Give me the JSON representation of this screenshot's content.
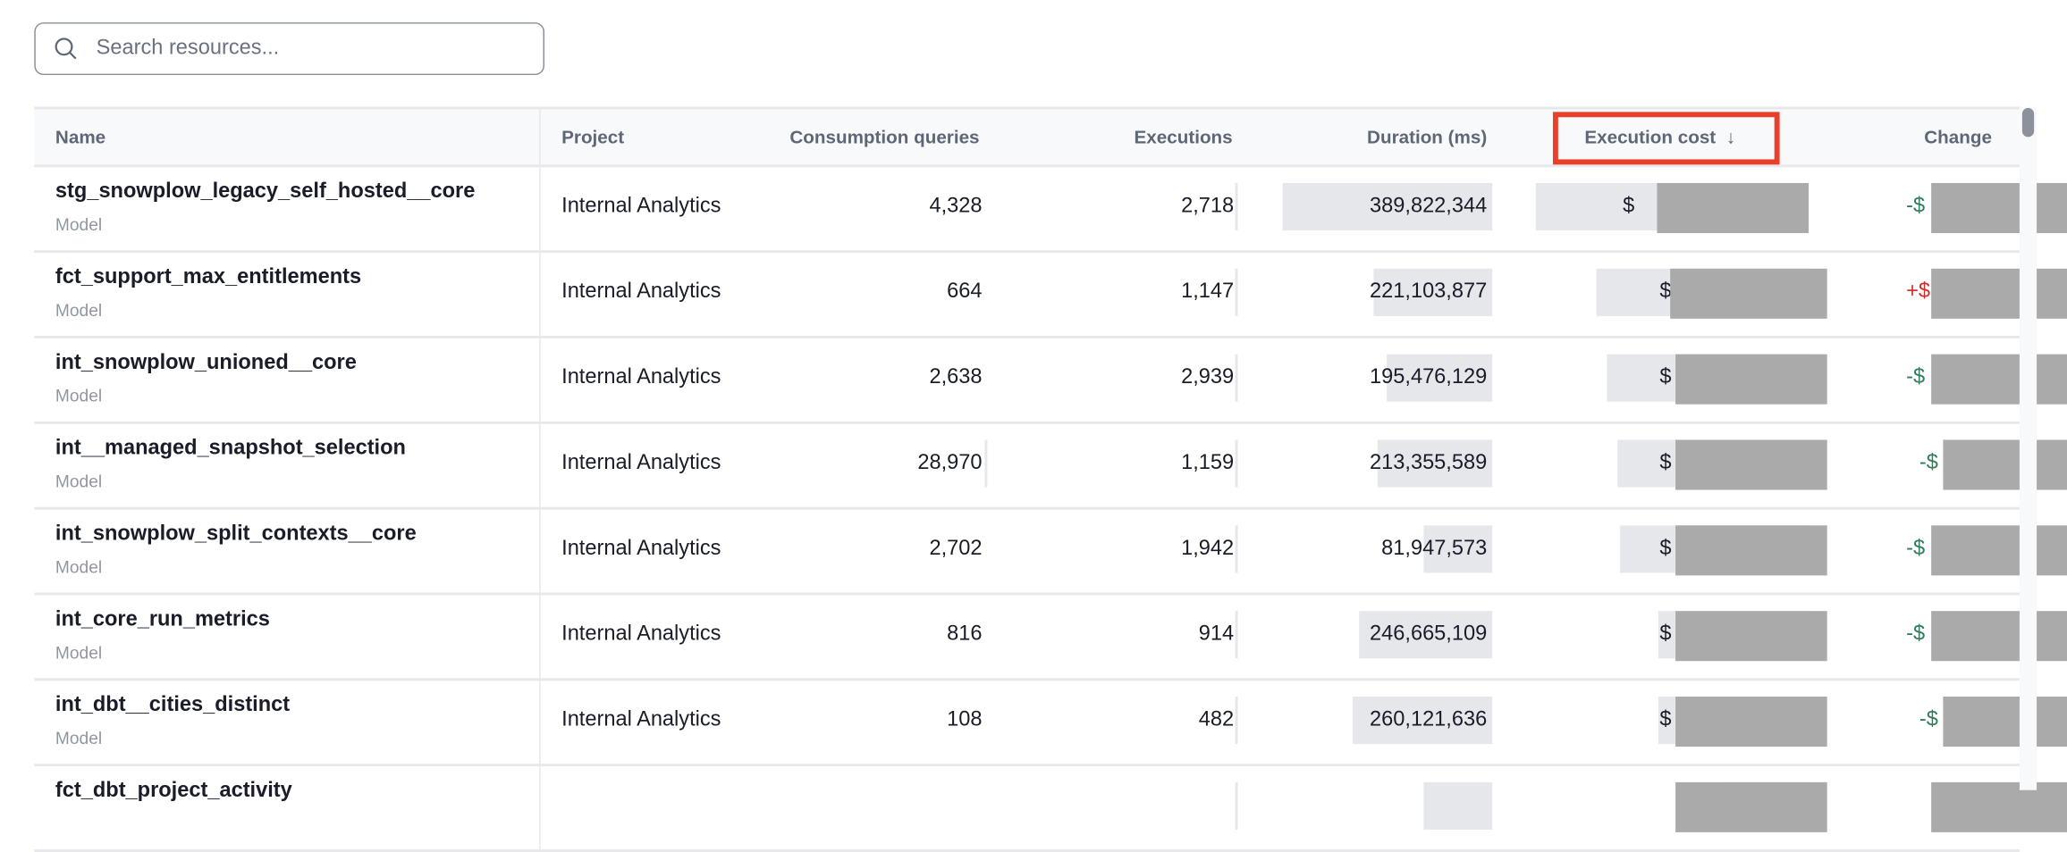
{
  "search": {
    "placeholder": "Search resources..."
  },
  "colors": {
    "sort_highlight": "#e8402a",
    "negative_change": "#2f7d5a",
    "positive_change": "#d0312d",
    "redaction": "#aaaaaa"
  },
  "columns": [
    "Name",
    "Project",
    "Consumption queries",
    "Executions",
    "Duration (ms)",
    "Execution cost",
    "Change"
  ],
  "sort": {
    "column": "Execution cost",
    "direction": "descending",
    "icon": "arrow-down-icon",
    "arrow": "↓"
  },
  "rows": [
    {
      "name": "stg_snowplow_legacy_self_hosted__core",
      "type": "Model",
      "project": "Internal Analytics",
      "consumption_queries": "4,328",
      "executions": "2,718",
      "duration_ms": "389,822,344",
      "cost_prefix": "$",
      "cost_bar_fraction": 1.0,
      "change_prefix": "-$",
      "change_sign": "negative"
    },
    {
      "name": "fct_support_max_entitlements",
      "type": "Model",
      "project": "Internal Analytics",
      "consumption_queries": "664",
      "executions": "1,147",
      "duration_ms": "221,103,877",
      "cost_prefix": "$",
      "cost_bar_fraction": 0.78,
      "change_prefix": "+$",
      "change_sign": "positive"
    },
    {
      "name": "int_snowplow_unioned__core",
      "type": "Model",
      "project": "Internal Analytics",
      "consumption_queries": "2,638",
      "executions": "2,939",
      "duration_ms": "195,476,129",
      "cost_prefix": "$",
      "cost_bar_fraction": 0.74,
      "change_prefix": "-$",
      "change_sign": "negative"
    },
    {
      "name": "int__managed_snapshot_selection",
      "type": "Model",
      "project": "Internal Analytics",
      "consumption_queries": "28,970",
      "executions": "1,159",
      "duration_ms": "213,355,589",
      "cost_prefix": "$",
      "cost_bar_fraction": 0.7,
      "change_prefix": "-$",
      "change_sign": "negative"
    },
    {
      "name": "int_snowplow_split_contexts__core",
      "type": "Model",
      "project": "Internal Analytics",
      "consumption_queries": "2,702",
      "executions": "1,942",
      "duration_ms": "81,947,573",
      "cost_prefix": "$",
      "cost_bar_fraction": 0.69,
      "change_prefix": "-$",
      "change_sign": "negative"
    },
    {
      "name": "int_core_run_metrics",
      "type": "Model",
      "project": "Internal Analytics",
      "consumption_queries": "816",
      "executions": "914",
      "duration_ms": "246,665,109",
      "cost_prefix": "$",
      "cost_bar_fraction": 0.55,
      "change_prefix": "-$",
      "change_sign": "negative"
    },
    {
      "name": "int_dbt__cities_distinct",
      "type": "Model",
      "project": "Internal Analytics",
      "consumption_queries": "108",
      "executions": "482",
      "duration_ms": "260,121,636",
      "cost_prefix": "$",
      "cost_bar_fraction": 0.55,
      "change_prefix": "-$",
      "change_sign": "negative"
    },
    {
      "name": "fct_dbt_project_activity",
      "type": "",
      "project": "",
      "consumption_queries": "",
      "executions": "",
      "duration_ms": "",
      "cost_prefix": "",
      "cost_bar_fraction": 0.3,
      "change_prefix": "",
      "change_sign": "negative"
    }
  ]
}
